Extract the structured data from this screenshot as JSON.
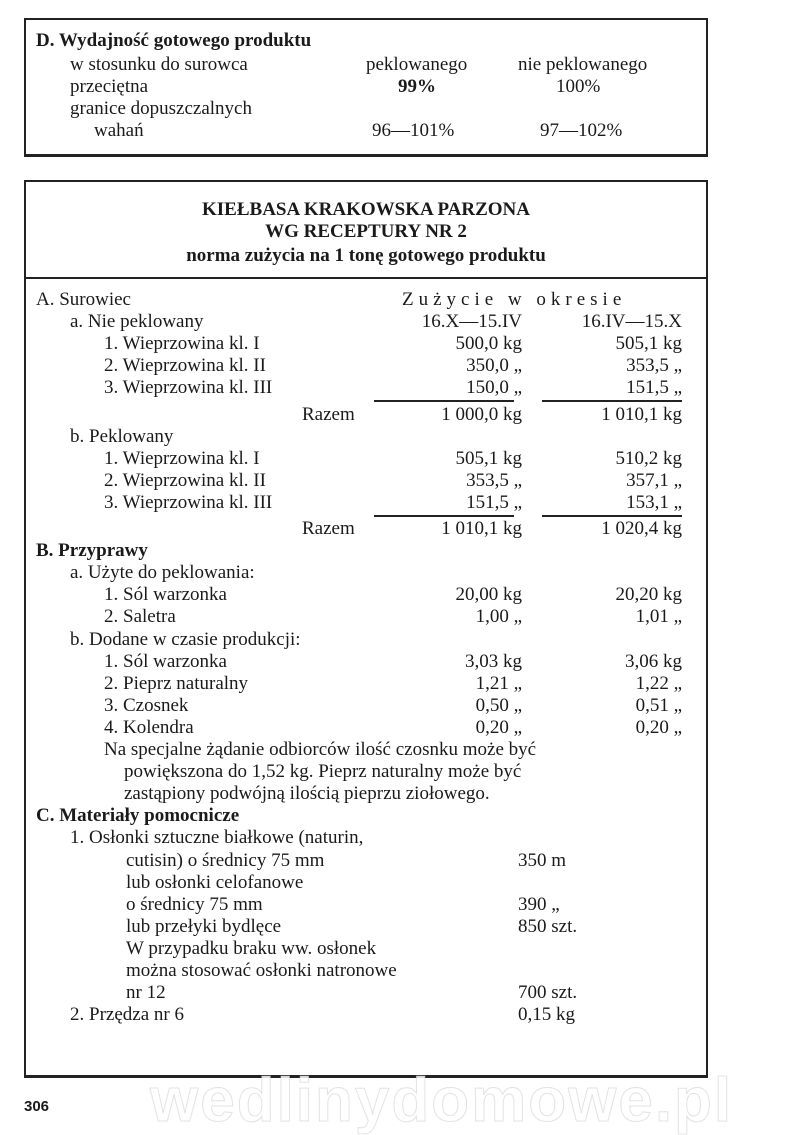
{
  "section_d": {
    "title": "D. Wydajność gotowego produktu",
    "col_label": "w stosunku do surowca",
    "col1": "peklowanego",
    "col2": "nie peklowanego",
    "avg_label": "przeciętna",
    "avg1": "99%",
    "avg2": "100%",
    "range_label_1": "granice dopuszczalnych",
    "range_label_2": "wahań",
    "range1": "96—101%",
    "range2": "97—102%"
  },
  "recipe": {
    "title_1": "KIEŁBASA KRAKOWSKA PARZONA",
    "title_2": "WG RECEPTURY NR 2",
    "subtitle": "norma zużycia na 1 tonę gotowego produktu",
    "rows": [
      {
        "label": "A. Surowiec",
        "indent": 0,
        "c1": "",
        "c2": "",
        "header": "Zużycie w okresie"
      },
      {
        "label": "a. Nie peklowany",
        "indent": 1,
        "c1": "16.X—15.IV",
        "c2": "16.IV—15.X"
      },
      {
        "label": "1. Wieprzowina kl. I",
        "indent": 2,
        "c1": "500,0 kg",
        "c2": "505,1 kg"
      },
      {
        "label": "2. Wieprzowina kl. II",
        "indent": 2,
        "c1": "350,0 „",
        "c2": "353,5 „"
      },
      {
        "label": "3. Wieprzowina kl. III",
        "indent": 2,
        "c1": "150,0 „",
        "c2": "151,5 „",
        "underline": true
      },
      {
        "label": "Razem",
        "indent": 9,
        "c1": "1 000,0 kg",
        "c2": "1 010,1 kg",
        "total": true
      },
      {
        "label": "b. Peklowany",
        "indent": 1,
        "c1": "",
        "c2": ""
      },
      {
        "label": "1. Wieprzowina kl. I",
        "indent": 2,
        "c1": "505,1 kg",
        "c2": "510,2 kg"
      },
      {
        "label": "2. Wieprzowina kl. II",
        "indent": 2,
        "c1": "353,5 „",
        "c2": "357,1 „"
      },
      {
        "label": "3. Wieprzowina kl. III",
        "indent": 2,
        "c1": "151,5 „",
        "c2": "153,1 „",
        "underline": true
      },
      {
        "label": "Razem",
        "indent": 9,
        "c1": "1 010,1 kg",
        "c2": "1 020,4 kg",
        "total": true
      },
      {
        "label": "B. Przyprawy",
        "indent": 0,
        "c1": "",
        "c2": "",
        "bold": true
      },
      {
        "label": "a. Użyte do peklowania:",
        "indent": 1,
        "c1": "",
        "c2": ""
      },
      {
        "label": "1. Sól warzonka",
        "indent": 2,
        "c1": "20,00 kg",
        "c2": "20,20 kg"
      },
      {
        "label": "2. Saletra",
        "indent": 2,
        "c1": "1,00 „",
        "c2": "1,01 „"
      },
      {
        "label": "b. Dodane w czasie produkcji:",
        "indent": 1,
        "c1": "",
        "c2": ""
      },
      {
        "label": "1. Sól warzonka",
        "indent": 2,
        "c1": "3,03 kg",
        "c2": "3,06 kg"
      },
      {
        "label": "2. Pieprz naturalny",
        "indent": 2,
        "c1": "1,21 „",
        "c2": "1,22 „"
      },
      {
        "label": "3. Czosnek",
        "indent": 2,
        "c1": "0,50 „",
        "c2": "0,51 „"
      },
      {
        "label": "4. Kolendra",
        "indent": 2,
        "c1": "0,20 „",
        "c2": "0,20 „"
      },
      {
        "label": "Na specjalne żądanie odbiorców ilość czosnku może być",
        "indent": 3,
        "c1": "",
        "c2": ""
      },
      {
        "label": "powiększona do 1,52 kg. Pieprz naturalny może być",
        "indent": 4,
        "c1": "",
        "c2": ""
      },
      {
        "label": "zastąpiony podwójną ilością pieprzu ziołowego.",
        "indent": 4,
        "c1": "",
        "c2": ""
      },
      {
        "label": "C. Materiały pomocnicze",
        "indent": 0,
        "c1": "",
        "c2": "",
        "bold": true
      },
      {
        "label": "1. Osłonki sztuczne białkowe (naturin,",
        "indent": 1,
        "c1": "",
        "c2": ""
      },
      {
        "label": "cutisin) o średnicy 75 mm",
        "indent": 5,
        "c3": "350 m"
      },
      {
        "label": "lub osłonki celofanowe",
        "indent": 5,
        "c3": ""
      },
      {
        "label": "o średnicy 75 mm",
        "indent": 5,
        "c3": "390 „"
      },
      {
        "label": "lub przełyki bydlęce",
        "indent": 5,
        "c3": "850 szt."
      },
      {
        "label": "W przypadku braku ww. osłonek",
        "indent": 5,
        "c3": ""
      },
      {
        "label": "można stosować osłonki natronowe",
        "indent": 5,
        "c3": ""
      },
      {
        "label": "nr 12",
        "indent": 5,
        "c3": "700 szt."
      },
      {
        "label": "2. Przędza nr 6",
        "indent": 1,
        "c3": "0,15 kg"
      }
    ]
  },
  "watermark": "wedlinydomowe.pl",
  "page_number": "306"
}
